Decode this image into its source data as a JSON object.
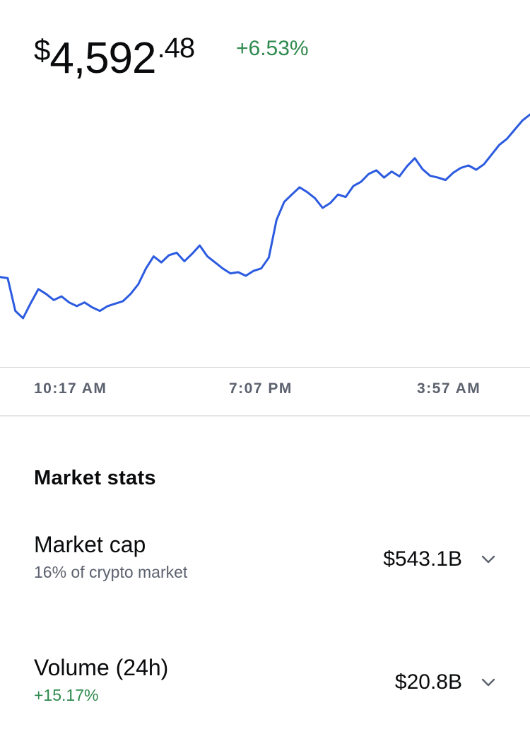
{
  "header": {
    "price_currency": "$",
    "price_whole": "4,592",
    "price_decimal": ".48",
    "change": "+6.53%"
  },
  "colors": {
    "line": "#2c5be0",
    "positive": "#2f8a4e",
    "muted": "#5b616e"
  },
  "chart_data": {
    "type": "line",
    "title": "",
    "xlabel": "",
    "ylabel": "",
    "x_ticks": [
      "10:17 AM",
      "7:07 PM",
      "3:57 AM"
    ],
    "ylim": [
      4200,
      4620
    ],
    "values": [
      4338,
      4336,
      4282,
      4270,
      4295,
      4318,
      4310,
      4300,
      4306,
      4296,
      4290,
      4296,
      4288,
      4282,
      4290,
      4294,
      4298,
      4310,
      4326,
      4352,
      4372,
      4362,
      4374,
      4378,
      4364,
      4376,
      4390,
      4372,
      4362,
      4352,
      4344,
      4346,
      4340,
      4348,
      4352,
      4370,
      4432,
      4462,
      4474,
      4486,
      4478,
      4468,
      4452,
      4460,
      4474,
      4470,
      4488,
      4495,
      4508,
      4514,
      4502,
      4512,
      4504,
      4521,
      4534,
      4516,
      4505,
      4502,
      4498,
      4510,
      4518,
      4522,
      4515,
      4524,
      4540,
      4556,
      4566,
      4581,
      4596,
      4606
    ]
  },
  "market_stats": {
    "title": "Market stats",
    "rows": [
      {
        "label": "Market cap",
        "sub": "16% of crypto market",
        "value": "$543.1B",
        "icon": "chevron-down-icon"
      },
      {
        "label": "Volume (24h)",
        "sub": "+15.17%",
        "value": "$20.8B",
        "icon": "chevron-down-icon"
      }
    ]
  }
}
